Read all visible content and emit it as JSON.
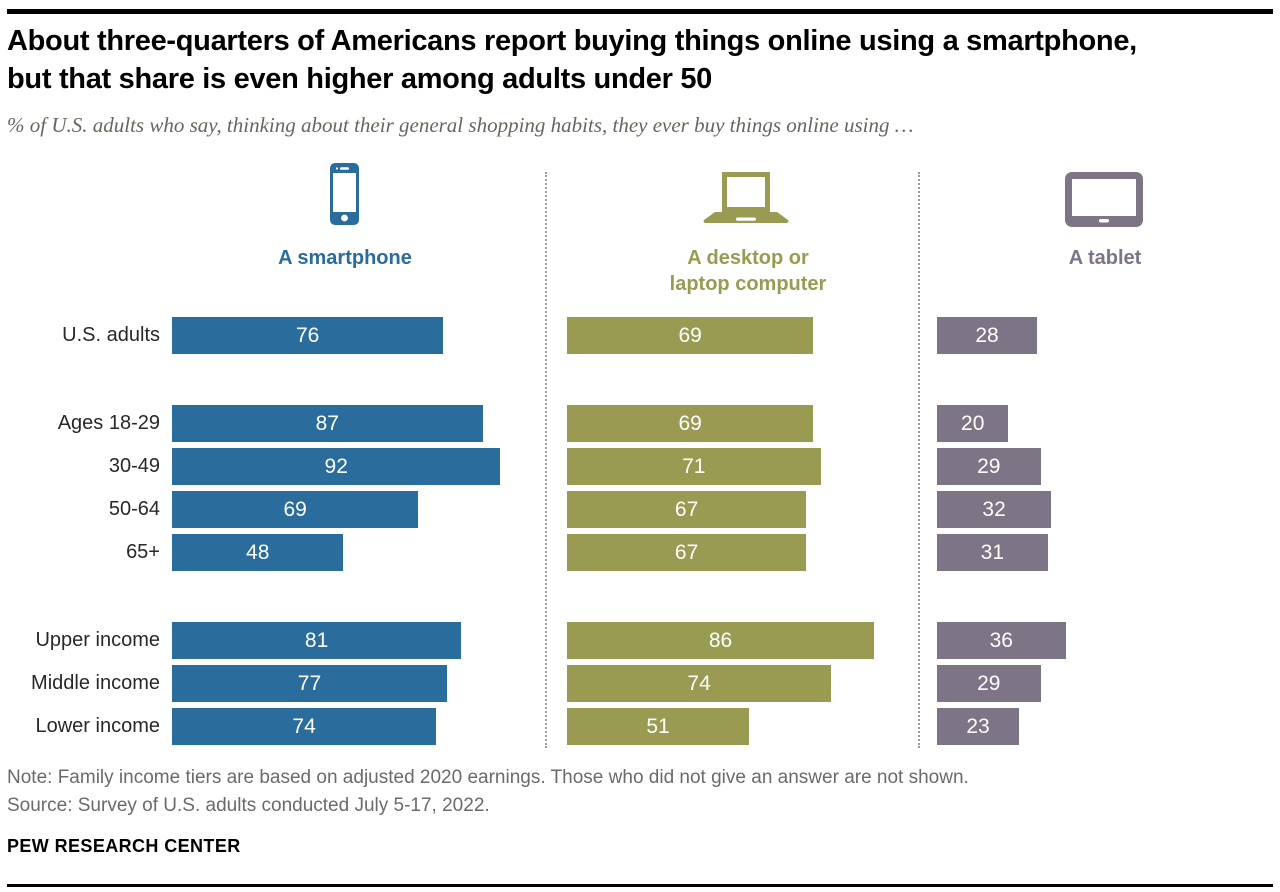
{
  "header": {
    "title_lines": [
      "About three-quarters of Americans report buying things online using a smartphone,",
      "but that share is even higher among adults under 50"
    ],
    "subtitle": "% of U.S. adults who say, thinking about their general shopping habits, they ever buy things online using …"
  },
  "device_columns": [
    {
      "id": "smartphone",
      "icon": "smartphone-icon",
      "label_lines": [
        "A smartphone",
        ""
      ],
      "color": "#2A6C9B"
    },
    {
      "id": "desktop",
      "icon": "laptop-icon",
      "label_lines": [
        "A desktop or",
        "laptop computer"
      ],
      "color": "#999B52"
    },
    {
      "id": "tablet",
      "icon": "tablet-icon",
      "label_lines": [
        "A tablet",
        ""
      ],
      "color": "#7D7485"
    }
  ],
  "chart_data": {
    "type": "bar",
    "orientation": "horizontal",
    "unit": "%",
    "xlim": [
      0,
      100
    ],
    "value_labels": "inside-center",
    "grid": false,
    "categories": [
      "U.S. adults",
      "Ages 18-29",
      "30-49",
      "50-64",
      "65+",
      "Upper income",
      "Middle income",
      "Lower income"
    ],
    "category_groups": [
      [
        "U.S. adults"
      ],
      [
        "Ages 18-29",
        "30-49",
        "50-64",
        "65+"
      ],
      [
        "Upper income",
        "Middle income",
        "Lower income"
      ]
    ],
    "series": [
      {
        "name": "A smartphone",
        "color": "#2A6C9B",
        "values": [
          76,
          87,
          92,
          69,
          48,
          81,
          77,
          74
        ]
      },
      {
        "name": "A desktop or laptop computer",
        "color": "#999B52",
        "values": [
          69,
          69,
          71,
          67,
          67,
          86,
          74,
          51
        ]
      },
      {
        "name": "A tablet",
        "color": "#7D7485",
        "values": [
          28,
          20,
          29,
          32,
          31,
          36,
          29,
          23
        ]
      }
    ]
  },
  "note": "Note: Family income tiers are based on adjusted 2020 earnings. Those who did not give an answer are not shown.",
  "source": "Source: Survey of U.S. adults conducted July 5-17, 2022.",
  "footer": "PEW RESEARCH CENTER",
  "colors": {
    "divider": "#9B9B9B",
    "rule": "#000000",
    "note_text": "#6A6A6A"
  }
}
